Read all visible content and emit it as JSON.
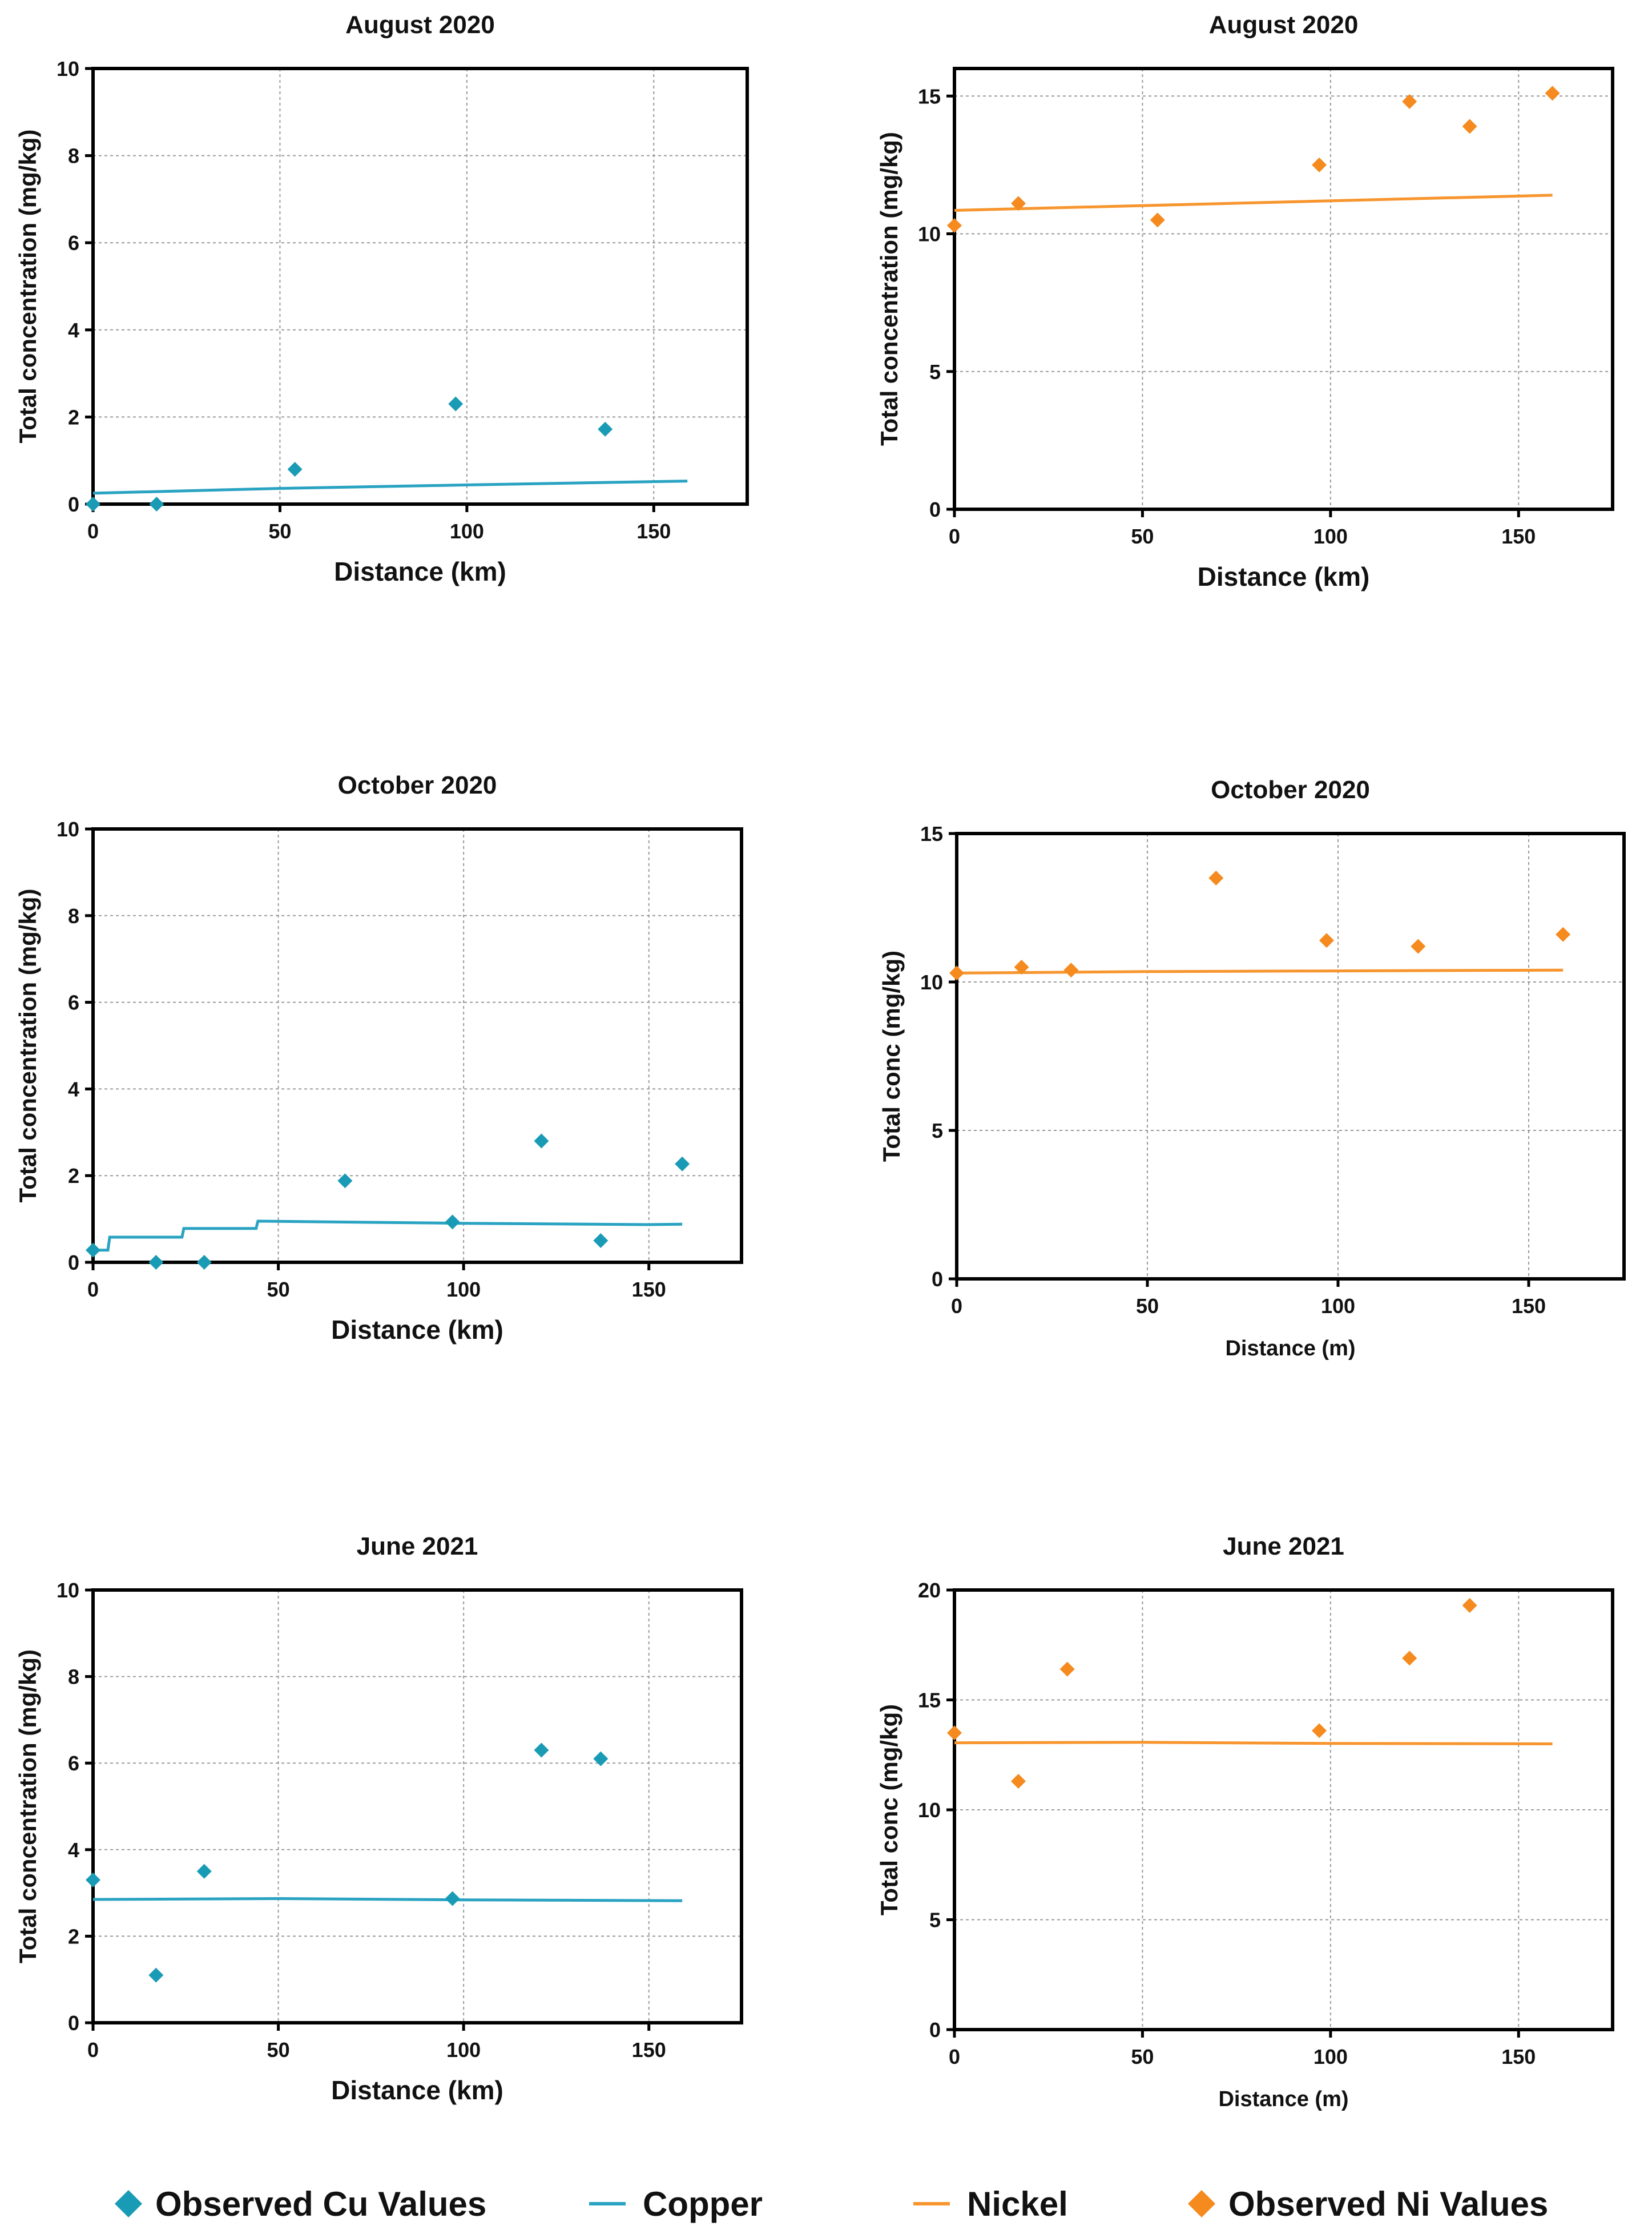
{
  "colors": {
    "copper": "#1a9bb5",
    "copper_line": "#2aa3c2",
    "nickel": "#f58a1f",
    "nickel_line": "#f7952e",
    "grid": "#9a9a9a",
    "axis": "#000000"
  },
  "chart_data": [
    {
      "id": "aug2020-cu",
      "type": "scatter",
      "title": "August 2020",
      "xlabel": "Distance (km)",
      "ylabel": "Total concentration (mg/kg)",
      "xlim": [
        0,
        175
      ],
      "ylim": [
        0,
        10
      ],
      "xticks": [
        "0",
        "50",
        "100",
        "150"
      ],
      "yticks": [
        "0",
        "2",
        "4",
        "6",
        "8",
        "10"
      ],
      "grid": true,
      "series_ref": "copper",
      "points": [
        [
          0,
          0.0
        ],
        [
          17,
          0.0
        ],
        [
          54,
          0.8
        ],
        [
          97,
          2.3
        ],
        [
          137,
          1.72
        ]
      ],
      "line": [
        [
          0,
          0.25
        ],
        [
          50,
          0.36
        ],
        [
          100,
          0.44
        ],
        [
          159,
          0.53
        ]
      ]
    },
    {
      "id": "aug2020-ni",
      "type": "scatter",
      "title": "August 2020",
      "xlabel": "Distance (km)",
      "ylabel": "Total concentration (mg/kg)",
      "xlim": [
        0,
        175
      ],
      "ylim": [
        0,
        16
      ],
      "xticks": [
        "0",
        "50",
        "100",
        "150"
      ],
      "yticks": [
        "0",
        "5",
        "10",
        "15"
      ],
      "grid": true,
      "series_ref": "nickel",
      "points": [
        [
          0,
          10.3
        ],
        [
          17,
          11.1
        ],
        [
          54,
          10.5
        ],
        [
          97,
          12.5
        ],
        [
          121,
          14.8
        ],
        [
          137,
          13.9
        ],
        [
          159,
          15.1
        ]
      ],
      "line": [
        [
          0,
          10.85
        ],
        [
          159,
          11.4
        ]
      ]
    },
    {
      "id": "oct2020-cu",
      "type": "scatter",
      "title": "October 2020",
      "xlabel": "Distance (km)",
      "ylabel": "Total concentration (mg/kg)",
      "xlim": [
        0,
        175
      ],
      "ylim": [
        0,
        10
      ],
      "xticks": [
        "0",
        "50",
        "100",
        "150"
      ],
      "yticks": [
        "0",
        "2",
        "4",
        "6",
        "8",
        "10"
      ],
      "grid": true,
      "series_ref": "copper",
      "points": [
        [
          0,
          0.28
        ],
        [
          17,
          0.0
        ],
        [
          30,
          0.0
        ],
        [
          68,
          1.88
        ],
        [
          97,
          0.93
        ],
        [
          121,
          2.8
        ],
        [
          137,
          0.5
        ],
        [
          159,
          2.27
        ]
      ],
      "line": [
        [
          0,
          0.28
        ],
        [
          4,
          0.28
        ],
        [
          4.5,
          0.58
        ],
        [
          24,
          0.58
        ],
        [
          24.5,
          0.78
        ],
        [
          44,
          0.78
        ],
        [
          44.5,
          0.95
        ],
        [
          100,
          0.9
        ],
        [
          150,
          0.87
        ],
        [
          159,
          0.88
        ]
      ]
    },
    {
      "id": "oct2020-ni",
      "type": "scatter",
      "title": "October 2020",
      "xlabel": "Distance (m)",
      "ylabel": "Total conc (mg/kg)",
      "xlim": [
        0,
        175
      ],
      "ylim": [
        0,
        15
      ],
      "xticks": [
        "0",
        "50",
        "100",
        "150"
      ],
      "yticks": [
        "0",
        "5",
        "10",
        "15"
      ],
      "grid": true,
      "series_ref": "nickel",
      "points": [
        [
          0,
          10.3
        ],
        [
          17,
          10.5
        ],
        [
          30,
          10.4
        ],
        [
          68,
          13.5
        ],
        [
          97,
          11.4
        ],
        [
          121,
          11.2
        ],
        [
          159,
          11.6
        ]
      ],
      "line": [
        [
          0,
          10.3
        ],
        [
          50,
          10.35
        ],
        [
          159,
          10.4
        ]
      ]
    },
    {
      "id": "jun2021-cu",
      "type": "scatter",
      "title": "June 2021",
      "xlabel": "Distance (km)",
      "ylabel": "Total concentration (mg/kg)",
      "xlim": [
        0,
        175
      ],
      "ylim": [
        0,
        10
      ],
      "xticks": [
        "0",
        "50",
        "100",
        "150"
      ],
      "yticks": [
        "0",
        "2",
        "4",
        "6",
        "8",
        "10"
      ],
      "grid": true,
      "series_ref": "copper",
      "points": [
        [
          0,
          3.3
        ],
        [
          17,
          1.1
        ],
        [
          30,
          3.5
        ],
        [
          97,
          2.87
        ],
        [
          121,
          6.3
        ],
        [
          137,
          6.1
        ]
      ],
      "line": [
        [
          0,
          2.85
        ],
        [
          50,
          2.87
        ],
        [
          100,
          2.84
        ],
        [
          159,
          2.82
        ]
      ]
    },
    {
      "id": "jun2021-ni",
      "type": "scatter",
      "title": "June 2021",
      "xlabel": "Distance (m)",
      "ylabel": "Total conc (mg/kg)",
      "xlim": [
        0,
        175
      ],
      "ylim": [
        0,
        20
      ],
      "xticks": [
        "0",
        "50",
        "100",
        "150"
      ],
      "yticks": [
        "0",
        "5",
        "10",
        "15",
        "20"
      ],
      "grid": true,
      "series_ref": "nickel",
      "points": [
        [
          0,
          13.5
        ],
        [
          17,
          11.3
        ],
        [
          30,
          16.4
        ],
        [
          97,
          13.6
        ],
        [
          121,
          16.9
        ],
        [
          137,
          19.3
        ]
      ],
      "line": [
        [
          0,
          13.05
        ],
        [
          50,
          13.07
        ],
        [
          100,
          13.02
        ],
        [
          159,
          13.0
        ]
      ]
    }
  ],
  "legend": [
    {
      "label": "Observed Cu Values",
      "kind": "diamond",
      "color_ref": "copper"
    },
    {
      "label": "Copper",
      "kind": "line",
      "color_ref": "copper_line"
    },
    {
      "label": "Nickel",
      "kind": "line",
      "color_ref": "nickel_line"
    },
    {
      "label": "Observed Ni Values",
      "kind": "diamond",
      "color_ref": "nickel"
    }
  ]
}
